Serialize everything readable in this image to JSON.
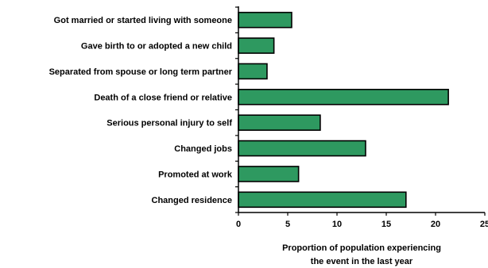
{
  "chart_data": {
    "type": "bar",
    "orientation": "horizontal",
    "categories": [
      "Got married or started living with someone",
      "Gave birth to or adopted a new child",
      "Separated from spouse or long term partner",
      "Death of a close friend or relative",
      "Serious personal injury to self",
      "Changed jobs",
      "Promoted at work",
      "Changed residence"
    ],
    "values": [
      5.4,
      3.6,
      2.9,
      21.3,
      8.3,
      12.9,
      6.1,
      17.0
    ],
    "xlim": [
      0,
      25
    ],
    "xticks": [
      "0",
      "5",
      "10",
      "15",
      "20",
      "25"
    ],
    "xlabel_lines": [
      "Proportion of population experiencing",
      "the event in the last year"
    ],
    "bar_color": "#2e9960",
    "grid": false,
    "legend": "none"
  }
}
